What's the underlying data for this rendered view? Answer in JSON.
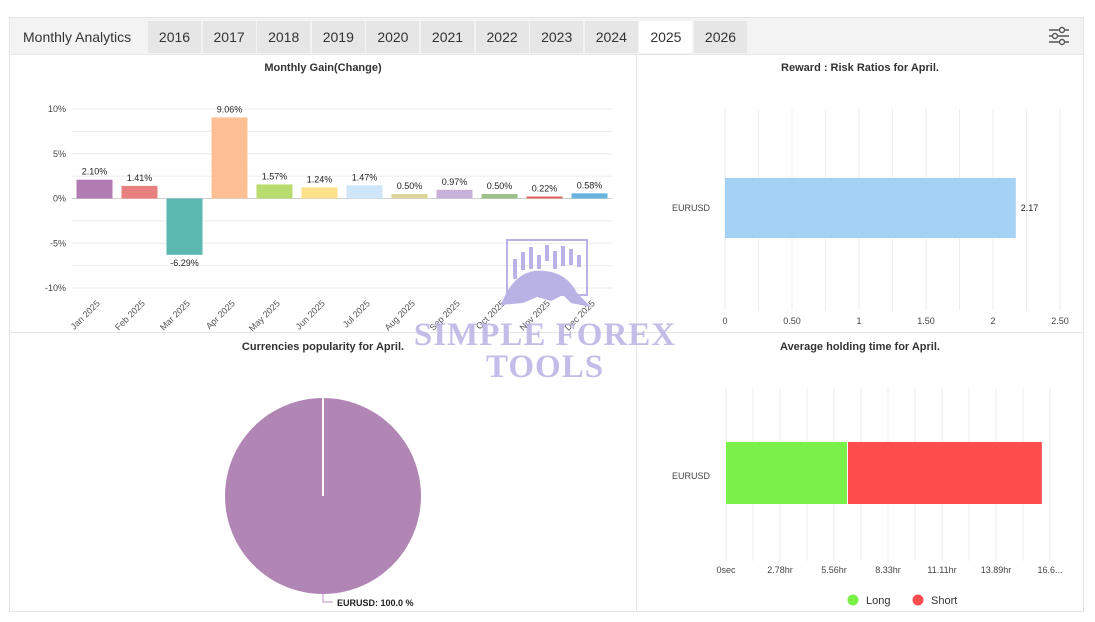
{
  "header": {
    "title": "Monthly Analytics",
    "years": [
      "2016",
      "2017",
      "2018",
      "2019",
      "2020",
      "2021",
      "2022",
      "2023",
      "2024",
      "2025",
      "2026"
    ],
    "active_year": "2025"
  },
  "watermark": {
    "line1": "SIMPLE FOREX",
    "line2": "TOOLS"
  },
  "colors": {
    "long": "#7cf04a",
    "short": "#ff4d4d",
    "rr_bar": "#a6d1f7",
    "pie": "#b186b4"
  },
  "chart_data": [
    {
      "type": "bar",
      "title": "Monthly Gain(Change)",
      "categories": [
        "Jan 2025",
        "Feb 2025",
        "Mar 2025",
        "Apr 2025",
        "May 2025",
        "Jun 2025",
        "Jul 2025",
        "Aug 2025",
        "Sep 2025",
        "Oct 2025",
        "Nov 2025",
        "Dec 2025"
      ],
      "values": [
        2.1,
        1.41,
        -6.29,
        9.06,
        1.57,
        1.24,
        1.47,
        0.5,
        0.97,
        0.5,
        0.22,
        0.58
      ],
      "value_labels": [
        "2.10%",
        "1.41%",
        "-6.29%",
        "9.06%",
        "1.57%",
        "1.24%",
        "1.47%",
        "0.50%",
        "0.97%",
        "0.50%",
        "0.22%",
        "0.58%"
      ],
      "bar_colors": [
        "#b07cb2",
        "#e88080",
        "#5bb8b0",
        "#ffbf94",
        "#b8dc6e",
        "#fde08a",
        "#cfe5f8",
        "#dcd69a",
        "#c9b0d9",
        "#9dc08a",
        "#e06060",
        "#6ab4e0"
      ],
      "yticks": [
        "10%",
        "5%",
        "0%",
        "-5%",
        "-10%"
      ],
      "ylim": [
        -10,
        10
      ],
      "grid": true
    },
    {
      "type": "bar",
      "orientation": "horizontal",
      "title": "Reward : Risk Ratios for April.",
      "categories": [
        "EURUSD"
      ],
      "values": [
        2.17
      ],
      "value_labels": [
        "2.17"
      ],
      "xticks": [
        "0",
        "0.50",
        "1",
        "1.50",
        "2",
        "2.50"
      ],
      "xlim": [
        0,
        2.5
      ]
    },
    {
      "type": "pie",
      "title": "Currencies popularity for April.",
      "labels": [
        "EURUSD"
      ],
      "values": [
        100.0
      ],
      "slice_labels": [
        "EURUSD: 100.0 %"
      ]
    },
    {
      "type": "bar",
      "orientation": "horizontal",
      "stacked": true,
      "title": "Average holding time for April.",
      "categories": [
        "EURUSD"
      ],
      "series": [
        {
          "name": "Long",
          "values": [
            6.25
          ]
        },
        {
          "name": "Short",
          "values": [
            10.0
          ]
        }
      ],
      "xticks": [
        "0sec",
        "2.78hr",
        "5.56hr",
        "8.33hr",
        "11.11hr",
        "13.89hr",
        "16.6..."
      ],
      "xlim": [
        0,
        16.67
      ],
      "legend": "bottom"
    }
  ]
}
